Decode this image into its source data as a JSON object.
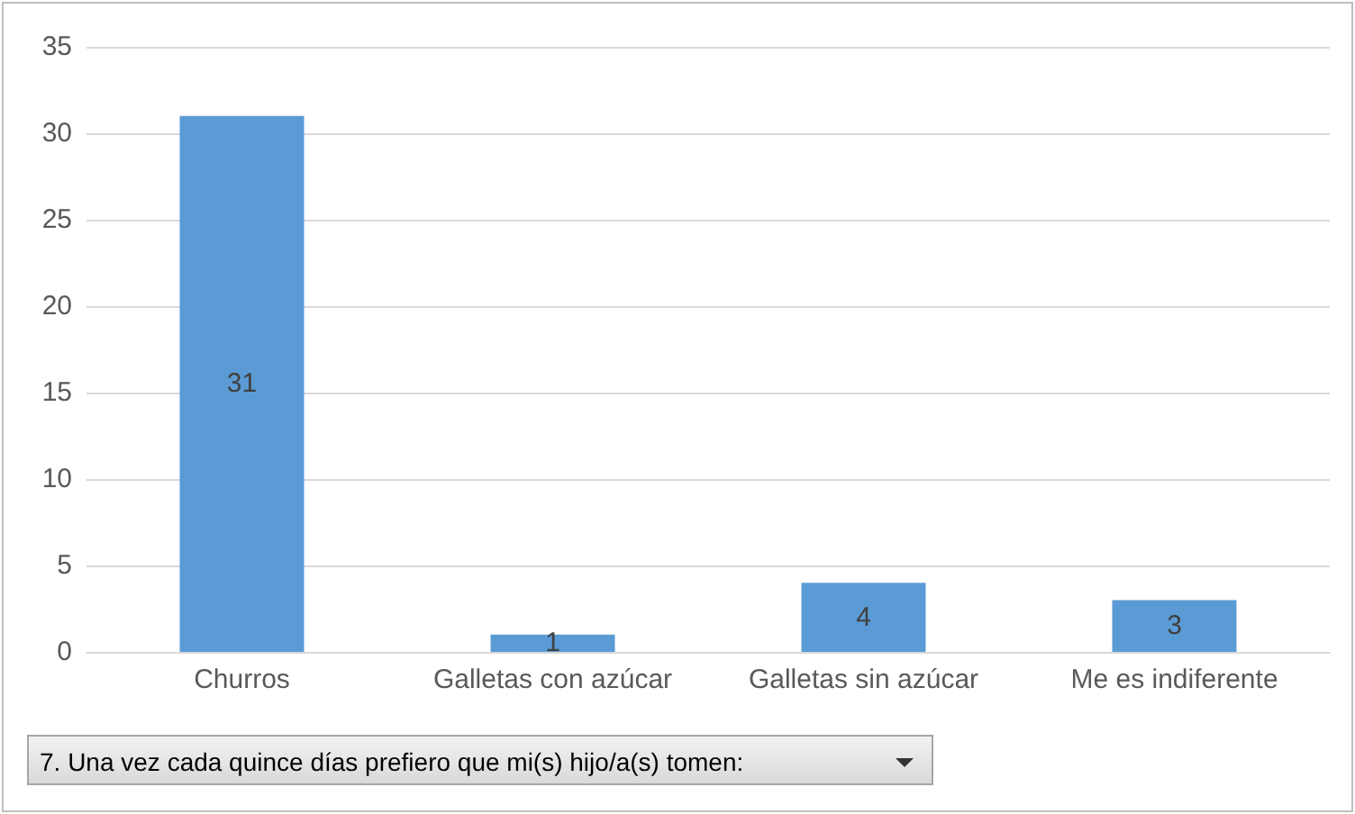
{
  "chart_data": {
    "type": "bar",
    "categories": [
      "Churros",
      "Galletas con azúcar",
      "Galletas sin azúcar",
      "Me es indiferente"
    ],
    "values": [
      31,
      1,
      4,
      3
    ],
    "color": "#5b9bd5",
    "ylim": [
      0,
      35
    ],
    "yticks": [
      0,
      5,
      10,
      15,
      20,
      25,
      30,
      35
    ],
    "grid": "y",
    "data_labels": true,
    "annotations": [
      "7. Una vez cada quince días prefiero que mi(s) hijo/a(s) tomen:"
    ]
  }
}
